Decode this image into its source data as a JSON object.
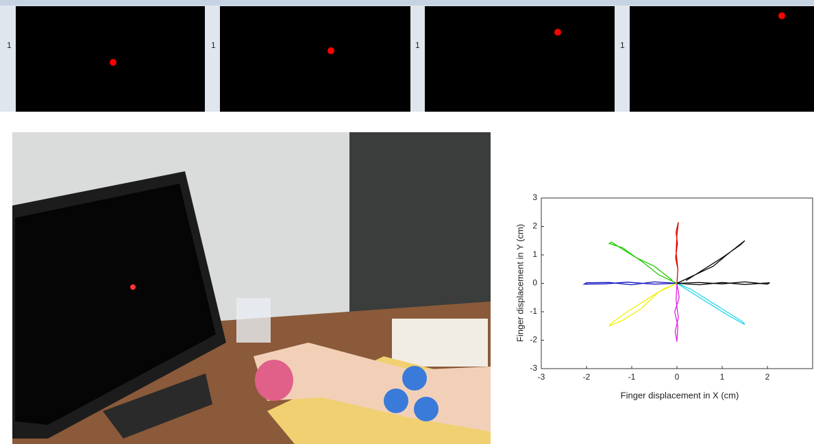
{
  "screens": [
    {
      "counter": "1"
    },
    {
      "counter": "1"
    },
    {
      "counter": "1"
    },
    {
      "counter": "1"
    }
  ],
  "chart_data": {
    "type": "line",
    "xlabel": "Finger displacement in X (cm)",
    "ylabel": "Finger displacement in Y (cm)",
    "xlim": [
      -3,
      3
    ],
    "ylim": [
      -3,
      3
    ],
    "xticks": [
      -3,
      -2,
      -1,
      0,
      1,
      2
    ],
    "yticks": [
      -3,
      -2,
      -1,
      0,
      1,
      2,
      3
    ],
    "series": [
      {
        "color": "#e00000",
        "x": [
          0,
          0.02,
          -0.03,
          0.01,
          -0.02,
          0.03,
          0,
          -0.02,
          0.02,
          0
        ],
        "y": [
          0,
          0.5,
          0.9,
          1.4,
          1.8,
          2.15,
          1.7,
          1.1,
          0.5,
          0
        ]
      },
      {
        "color": "#22cc00",
        "x": [
          0,
          -0.4,
          -0.8,
          -1.1,
          -1.45,
          -1.5,
          -1.2,
          -0.9,
          -0.5,
          -0.1
        ],
        "y": [
          0,
          0.3,
          0.8,
          1.1,
          1.45,
          1.4,
          1.25,
          0.9,
          0.6,
          0.1
        ]
      },
      {
        "color": "#1010c0",
        "x": [
          0,
          -0.5,
          -1,
          -1.5,
          -2.0,
          -2.05,
          -1.6,
          -1.1,
          -0.5,
          0
        ],
        "y": [
          0,
          0.05,
          -0.05,
          0.03,
          0.02,
          -0.03,
          -0.02,
          0.04,
          -0.03,
          0
        ]
      },
      {
        "color": "#f0f000",
        "x": [
          0,
          -0.3,
          -0.7,
          -1.1,
          -1.45,
          -1.5,
          -1.2,
          -0.8,
          -0.4,
          0
        ],
        "y": [
          0,
          -0.2,
          -0.6,
          -1.0,
          -1.4,
          -1.5,
          -1.3,
          -0.9,
          -0.3,
          0
        ]
      },
      {
        "color": "#e020e0",
        "x": [
          0,
          0.05,
          -0.05,
          0.02,
          0,
          -0.04,
          0.03,
          -0.02,
          0
        ],
        "y": [
          0,
          -0.5,
          -1,
          -1.5,
          -2.05,
          -1.7,
          -1.2,
          -0.6,
          0
        ]
      },
      {
        "color": "#20d8e8",
        "x": [
          0,
          0.3,
          0.7,
          1.1,
          1.5,
          1.45,
          1.1,
          0.7,
          0.3,
          0
        ],
        "y": [
          0,
          -0.3,
          -0.7,
          -1.1,
          -1.45,
          -1.35,
          -1.0,
          -0.6,
          -0.2,
          0
        ]
      },
      {
        "color": "#000000",
        "x": [
          0,
          0.5,
          1,
          1.5,
          2.05,
          2.0,
          1.5,
          1,
          0.5,
          0
        ],
        "y": [
          0,
          -0.05,
          0.03,
          -0.04,
          0.02,
          -0.03,
          0.05,
          -0.02,
          0.03,
          0
        ]
      },
      {
        "color": "#000000",
        "x": [
          0,
          0.4,
          0.8,
          1.1,
          1.5,
          1.4,
          1.0,
          0.6,
          0.2
        ],
        "y": [
          0,
          0.3,
          0.6,
          1.0,
          1.5,
          1.35,
          0.9,
          0.5,
          0.1
        ]
      }
    ]
  }
}
